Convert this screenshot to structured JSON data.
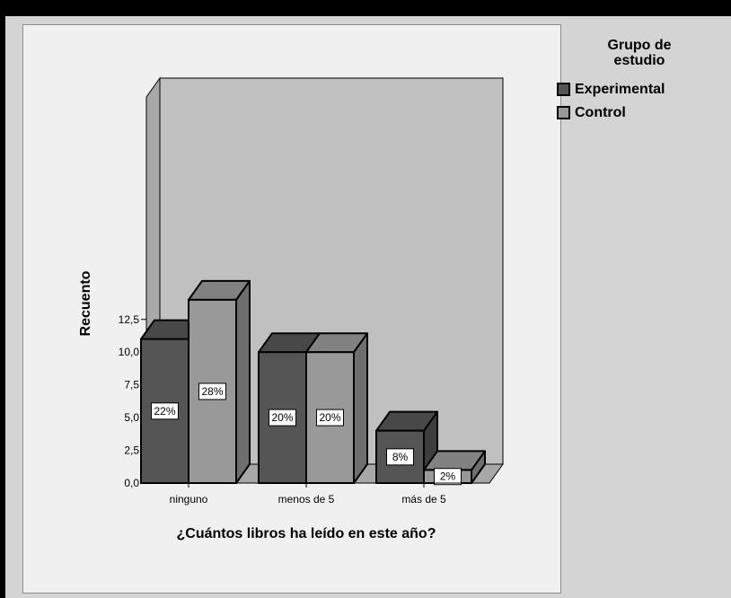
{
  "chart_data": {
    "type": "bar",
    "style": "3d-clustered",
    "categories": [
      "ninguno",
      "menos de 5",
      "más de 5"
    ],
    "series": [
      {
        "name": "Experimental",
        "values": [
          11,
          10,
          4
        ],
        "labels": [
          "22%",
          "20%",
          "8%"
        ],
        "color": "#555555"
      },
      {
        "name": "Control",
        "values": [
          14,
          10,
          1
        ],
        "labels": [
          "28%",
          "20%",
          "2%"
        ],
        "color": "#999999"
      }
    ],
    "xlabel": "¿Cuántos libros ha leído en este año?",
    "ylabel": "Recuento",
    "ylim": [
      0,
      15
    ],
    "yticks": [
      "0,0",
      "2,5",
      "5,0",
      "7,5",
      "10,0",
      "12,5"
    ],
    "ytick_values": [
      0,
      2.5,
      5,
      7.5,
      10,
      12.5
    ],
    "legend_title": "Grupo de\nestudio",
    "legend_position": "right",
    "colors": {
      "plot_background": "#c0c0c0",
      "chart_background": "#f0f0f0",
      "outer_background": "#d4d4d4",
      "frame": "#000000",
      "wall_side": "#a8a8a8"
    }
  }
}
